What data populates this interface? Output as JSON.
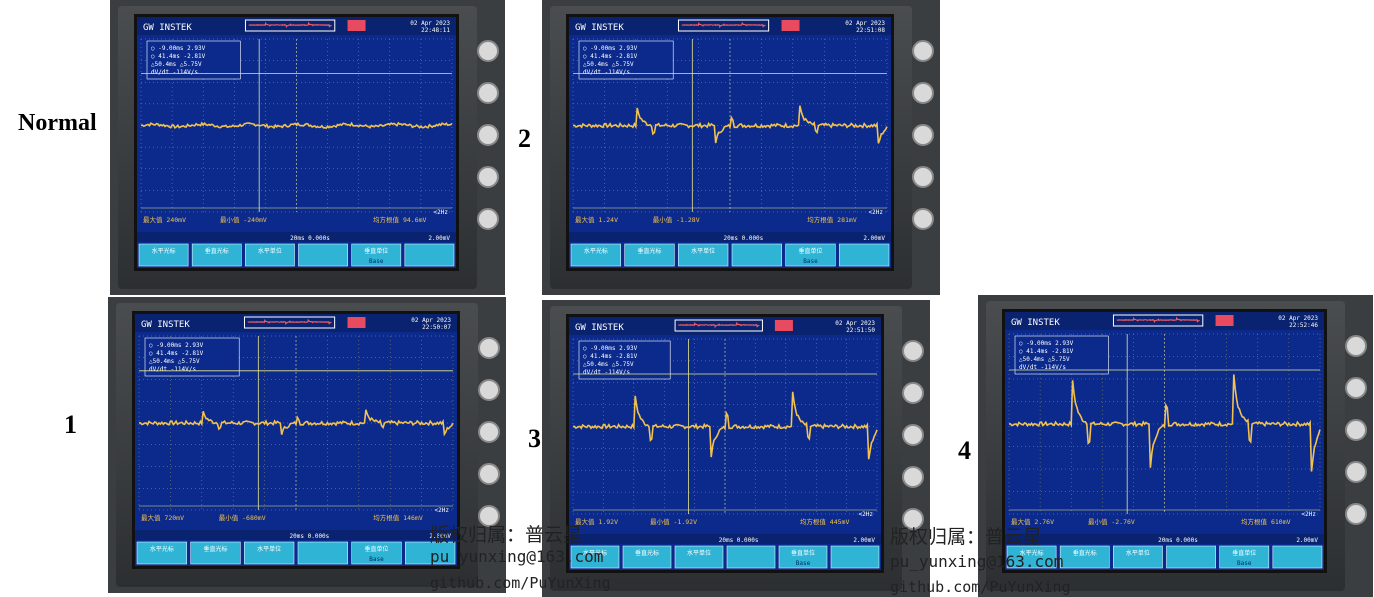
{
  "labels": {
    "normal": "Normal",
    "one": "1",
    "two": "2",
    "three": "3",
    "four": "4"
  },
  "scope": {
    "brand": "GW INSTEK",
    "cursor_t1": "-9.00ms",
    "cursor_v1": "2.93V",
    "cursor_t2": "41.4ms",
    "cursor_v2": "-2.81V",
    "delta_t": "△50.4ms",
    "delta_v": "△5.75V",
    "dvdt": "dV/dt",
    "dvdt_value": "-114V/s",
    "timebase": "20ms",
    "offset": "0.000s",
    "trigger": "2.00mV",
    "freq": "<2Hz",
    "menu_h_cursor": "水平光标",
    "menu_v_cursor": "垂直光标",
    "menu_h_unit": "水平单位",
    "menu_v_unit": "垂直单位",
    "menu_base": "Base",
    "panels": {
      "normal": {
        "date": "02 Apr 2023",
        "time": "22:48:11",
        "max": "最大值 240mV",
        "min": "最小值 -240mV",
        "rms": "均方根值 94.6mV"
      },
      "two": {
        "date": "02 Apr 2023",
        "time": "22:51:08",
        "max": "最大值 1.24V",
        "min": "最小值 -1.28V",
        "rms": "均方根值 281mV"
      },
      "one": {
        "date": "02 Apr 2023",
        "time": "22:50:07",
        "max": "最大值 720mV",
        "min": "最小值 -680mV",
        "rms": "均方根值 146mV"
      },
      "three": {
        "date": "02 Apr 2023",
        "time": "22:51:50",
        "max": "最大值 1.92V",
        "min": "最小值 -1.92V",
        "rms": "均方根值 445mV"
      },
      "four": {
        "date": "02 Apr 2023",
        "time": "22:52:46",
        "max": "最大值 2.76V",
        "min": "最小值 -2.76V",
        "rms": "均方根值 610mV"
      }
    }
  },
  "watermark": {
    "title": "版权归属：普云星",
    "email": "pu_yunxing@163.com",
    "github": "github.com/PuYunXing"
  },
  "colors": {
    "screen": "#0b2a8c",
    "trace": "#f2c14e",
    "grid": "#c9c97a",
    "menu": "#2fb4d6"
  }
}
